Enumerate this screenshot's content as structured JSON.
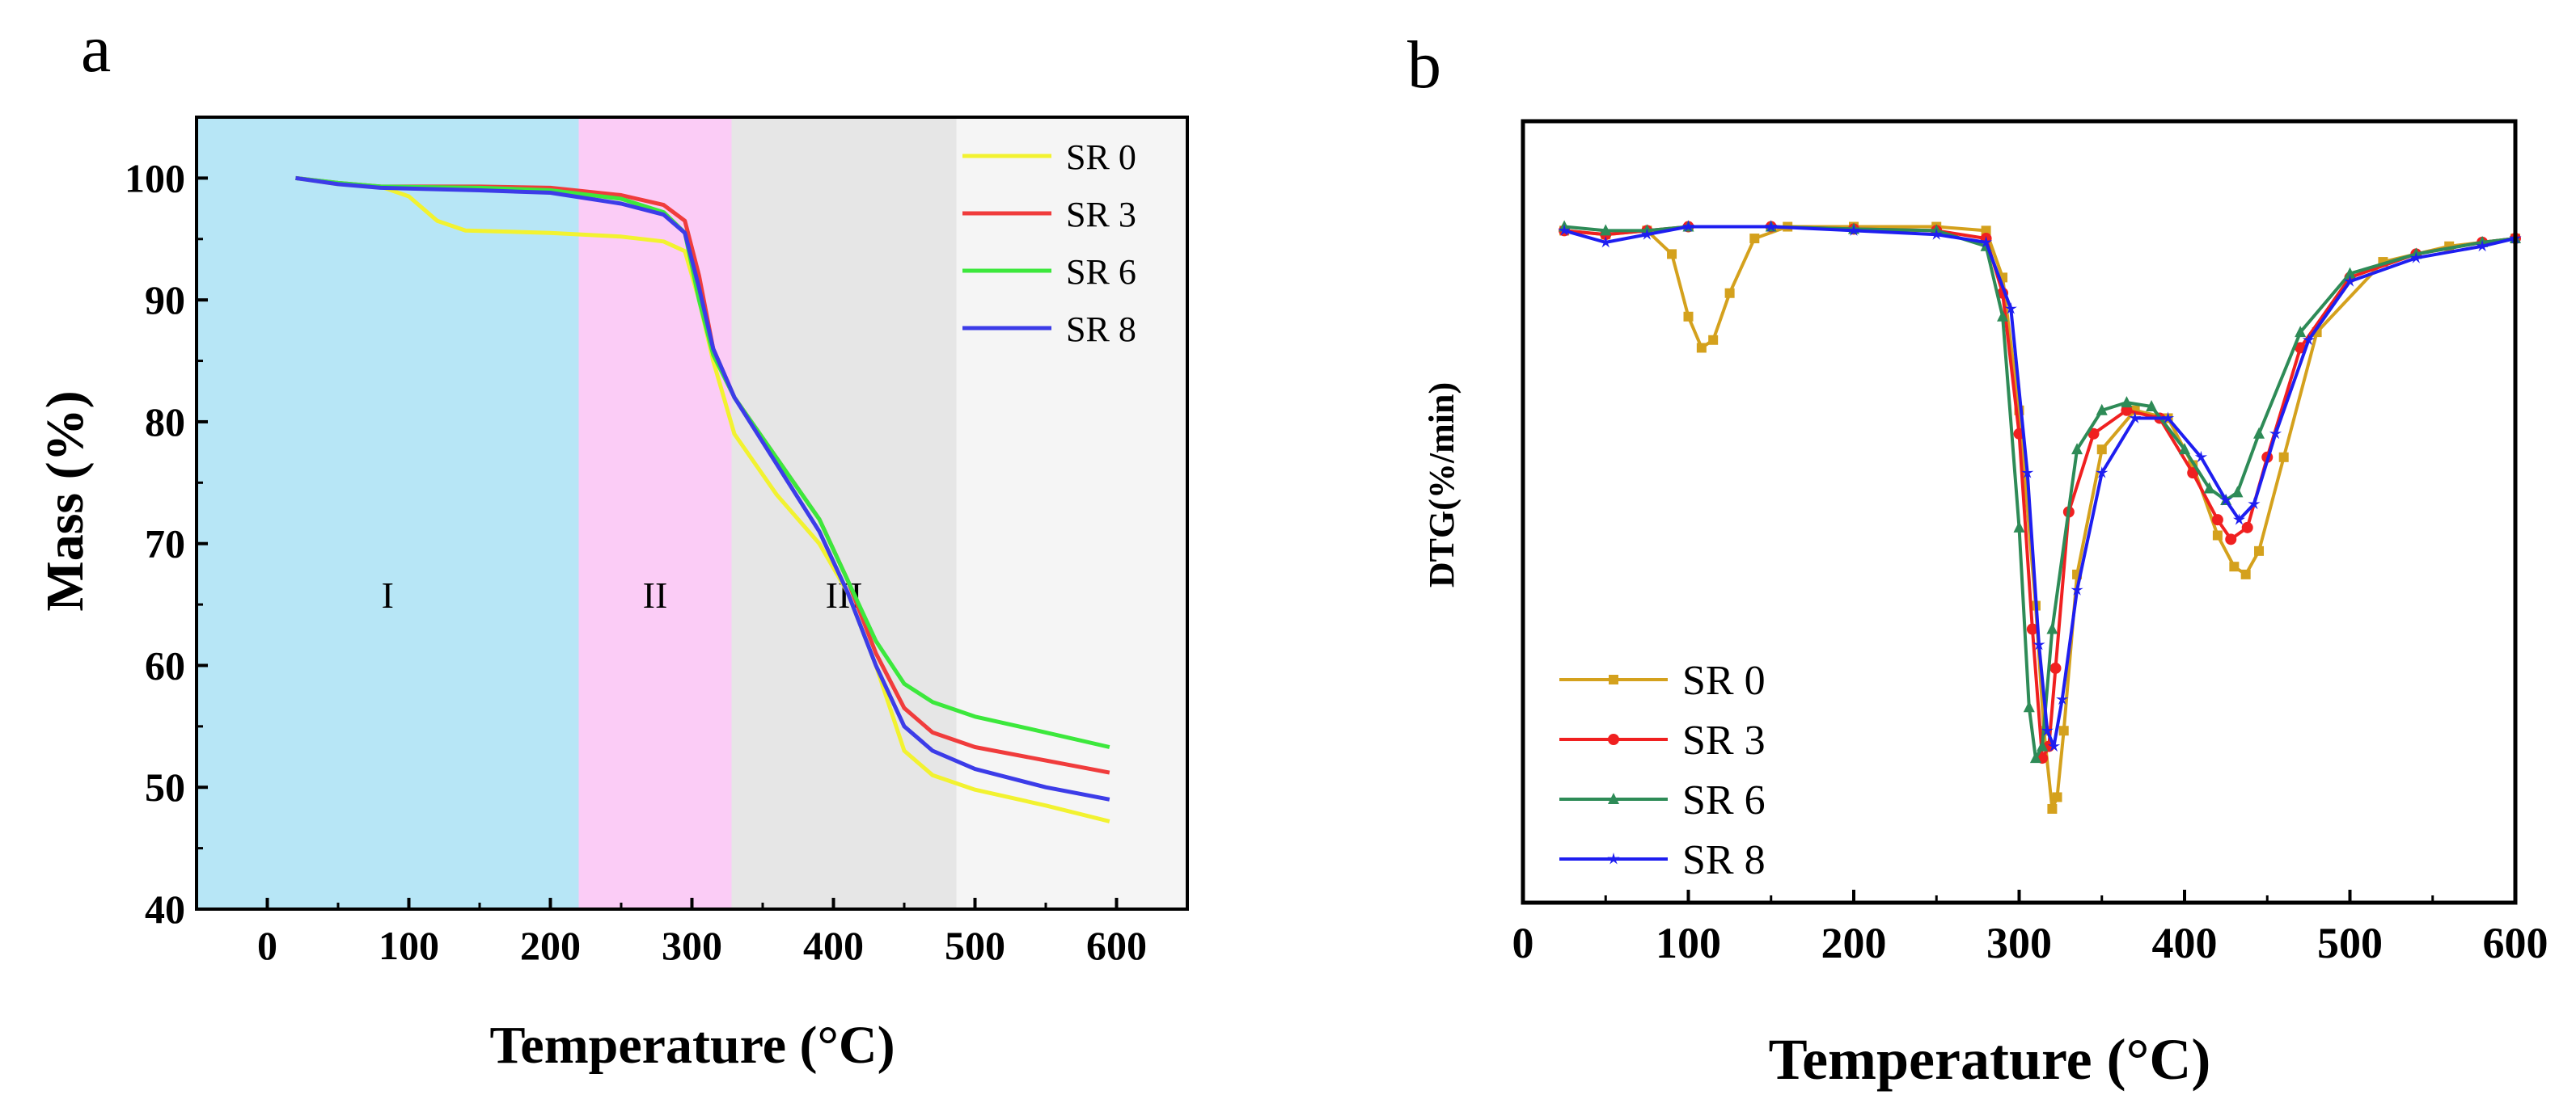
{
  "chart_data": [
    {
      "panel": "a",
      "type": "line",
      "xlabel": "Temperature (°C)",
      "ylabel": "Mass (%)",
      "xlim": [
        -50,
        650
      ],
      "ylim": [
        40,
        105
      ],
      "xticks": [
        0,
        100,
        200,
        300,
        400,
        500,
        600
      ],
      "yticks": [
        40,
        50,
        60,
        70,
        80,
        90,
        100
      ],
      "regions": [
        {
          "label": "I",
          "x0": -50,
          "x1": 220,
          "color": "#b7e6f6"
        },
        {
          "label": "II",
          "x0": 220,
          "x1": 328,
          "color": "#fbccf6"
        },
        {
          "label": "III",
          "x0": 328,
          "x1": 487,
          "color": "#e6e6e6"
        },
        {
          "label": "",
          "x0": 487,
          "x1": 650,
          "color": "#f5f5f5"
        }
      ],
      "legend_position": "top-right",
      "series": [
        {
          "name": "SR 0",
          "color": "#f2f230",
          "x": [
            20,
            50,
            80,
            100,
            120,
            140,
            200,
            250,
            280,
            295,
            305,
            315,
            330,
            360,
            390,
            410,
            430,
            450,
            470,
            500,
            550,
            595
          ],
          "y": [
            100,
            99.5,
            99.3,
            98.5,
            96.5,
            95.7,
            95.5,
            95.2,
            94.8,
            94,
            90,
            85,
            79,
            74,
            70,
            66,
            60,
            53,
            51,
            49.8,
            48.5,
            47.2
          ]
        },
        {
          "name": "SR 3",
          "color": "#f03c3c",
          "x": [
            20,
            50,
            80,
            150,
            200,
            250,
            280,
            295,
            305,
            315,
            330,
            360,
            390,
            410,
            430,
            450,
            470,
            500,
            550,
            595
          ],
          "y": [
            100,
            99.6,
            99.3,
            99.3,
            99.2,
            98.6,
            97.8,
            96.5,
            92,
            86,
            82,
            77,
            72,
            67,
            61,
            56.5,
            54.5,
            53.3,
            52.2,
            51.2
          ]
        },
        {
          "name": "SR 6",
          "color": "#3ce83c",
          "x": [
            20,
            50,
            80,
            150,
            200,
            250,
            280,
            295,
            305,
            315,
            330,
            360,
            390,
            410,
            430,
            450,
            470,
            500,
            550,
            595
          ],
          "y": [
            100,
            99.6,
            99.3,
            99.2,
            99.0,
            98.3,
            97.2,
            95.5,
            90,
            85.5,
            82,
            77,
            72,
            67,
            62,
            58.5,
            57,
            55.8,
            54.5,
            53.3
          ]
        },
        {
          "name": "SR 8",
          "color": "#3c3ce8",
          "x": [
            20,
            50,
            80,
            150,
            200,
            250,
            280,
            295,
            305,
            315,
            330,
            360,
            390,
            410,
            430,
            450,
            470,
            500,
            550,
            595
          ],
          "y": [
            100,
            99.5,
            99.2,
            99.0,
            98.8,
            97.9,
            97.0,
            95.5,
            91,
            86,
            82,
            76.5,
            71,
            66,
            60,
            55,
            53,
            51.5,
            50,
            49
          ]
        }
      ]
    },
    {
      "panel": "b",
      "type": "line",
      "xlabel": "Temperature (°C)",
      "ylabel": "DTG(%/min)",
      "xlim": [
        0,
        600
      ],
      "ylim": [
        0,
        100
      ],
      "xticks": [
        0,
        100,
        200,
        300,
        400,
        500,
        600
      ],
      "legend_position": "bottom-left",
      "series": [
        {
          "name": "SR 0",
          "color": "#d4a11d",
          "marker": "square",
          "x": [
            25,
            50,
            75,
            90,
            100,
            108,
            115,
            125,
            140,
            160,
            200,
            250,
            280,
            290,
            300,
            310,
            315,
            320,
            323,
            327,
            335,
            350,
            370,
            390,
            405,
            420,
            430,
            437,
            445,
            460,
            480,
            520,
            560,
            600
          ],
          "y": [
            86.0,
            85.5,
            86.0,
            83.0,
            75.0,
            71.0,
            72.0,
            78.0,
            85.0,
            86.5,
            86.5,
            86.5,
            86.0,
            80.0,
            63.0,
            38.0,
            22.0,
            12.0,
            13.5,
            22.0,
            42.0,
            58.0,
            63.0,
            62.0,
            56.0,
            47.0,
            43.0,
            42.0,
            45.0,
            57.0,
            73.0,
            82.0,
            84.0,
            85.0
          ]
        },
        {
          "name": "SR 3",
          "color": "#f02020",
          "marker": "circle",
          "x": [
            25,
            50,
            75,
            100,
            150,
            200,
            250,
            280,
            290,
            300,
            308,
            314,
            318,
            322,
            330,
            345,
            365,
            385,
            405,
            420,
            428,
            438,
            450,
            470,
            500,
            540,
            580,
            600
          ],
          "y": [
            86.0,
            85.5,
            86.0,
            86.5,
            86.5,
            86.2,
            86.0,
            85.0,
            78.0,
            60.0,
            35.0,
            18.5,
            20.0,
            30.0,
            50.0,
            60.0,
            63.0,
            62.0,
            55.0,
            49.0,
            46.5,
            48.0,
            57.0,
            71.0,
            80.0,
            83.0,
            84.5,
            85.0
          ]
        },
        {
          "name": "SR 6",
          "color": "#2e8b57",
          "marker": "triangle",
          "x": [
            25,
            50,
            75,
            100,
            150,
            200,
            250,
            280,
            290,
            300,
            306,
            310,
            314,
            320,
            335,
            350,
            365,
            380,
            400,
            415,
            425,
            432,
            445,
            470,
            500,
            540,
            580,
            600
          ],
          "y": [
            86.5,
            86.0,
            86.0,
            86.5,
            86.5,
            86.2,
            86.0,
            84.0,
            75.0,
            48.0,
            25.0,
            18.5,
            20.0,
            35.0,
            58.0,
            63.0,
            64.0,
            63.5,
            58.0,
            53.0,
            51.5,
            52.5,
            60.0,
            73.0,
            80.5,
            83.0,
            84.5,
            85.0
          ]
        },
        {
          "name": "SR 8",
          "color": "#1e1ef0",
          "marker": "star",
          "x": [
            25,
            50,
            75,
            100,
            150,
            200,
            250,
            280,
            295,
            305,
            312,
            317,
            321,
            326,
            335,
            350,
            370,
            390,
            410,
            425,
            433,
            442,
            455,
            475,
            500,
            540,
            580,
            600
          ],
          "y": [
            86.0,
            84.5,
            85.5,
            86.5,
            86.5,
            86.0,
            85.5,
            84.5,
            76.0,
            55.0,
            33.0,
            22.0,
            20.0,
            26.0,
            40.0,
            55.0,
            62.0,
            62.0,
            57.0,
            51.5,
            49.0,
            51.0,
            60.0,
            72.0,
            79.5,
            82.5,
            84.0,
            85.0
          ]
        }
      ]
    }
  ],
  "panel_labels": [
    "a",
    "b"
  ]
}
